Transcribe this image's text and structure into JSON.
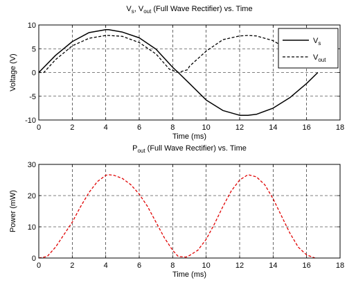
{
  "chart_data": [
    {
      "type": "line",
      "title": "Vs, Vout (Full Wave Rectifier) vs. Time",
      "title_parts": [
        {
          "text": "V",
          "sub": "s"
        },
        {
          "text": ", V",
          "sub": "out"
        },
        {
          "text": " (Full Wave Rectifier) vs. Time",
          "sub": ""
        }
      ],
      "xlabel": "Time (ms)",
      "ylabel": "Voltage (V)",
      "xlim": [
        0,
        18
      ],
      "ylim": [
        -10,
        10
      ],
      "xticks": [
        0,
        2,
        4,
        6,
        8,
        10,
        12,
        14,
        16,
        18
      ],
      "yticks": [
        -10,
        -5,
        0,
        5,
        10
      ],
      "grid": true,
      "legend_position": "top-right",
      "series": [
        {
          "name": "Vs",
          "legend": {
            "text": "V",
            "sub": "s"
          },
          "style": "solid",
          "color": "#000000",
          "x": [
            0,
            1,
            2,
            3,
            4,
            4.17,
            5,
            6,
            7,
            8,
            8.33,
            9,
            10,
            11,
            12,
            12.5,
            13,
            14,
            15,
            16,
            16.67
          ],
          "values": [
            0,
            3.6,
            6.5,
            8.4,
            9.0,
            9.0,
            8.5,
            7.3,
            4.9,
            1.1,
            0,
            -2.3,
            -5.8,
            -8.0,
            -9.0,
            -9.0,
            -8.8,
            -7.5,
            -5.3,
            -2.3,
            0
          ]
        },
        {
          "name": "Vout",
          "legend": {
            "text": "V",
            "sub": "out"
          },
          "style": "dashed",
          "color": "#000000",
          "x": [
            0,
            0.3,
            1,
            2,
            3,
            4,
            4.17,
            5,
            6,
            7,
            7.8,
            8.33,
            8.9,
            9,
            10,
            11,
            12,
            12.5,
            13,
            14,
            15,
            15.6,
            16
          ],
          "values": [
            0,
            0,
            2.7,
            5.6,
            7.2,
            7.8,
            7.8,
            7.6,
            6.3,
            3.9,
            0.7,
            0,
            0.6,
            1.3,
            4.5,
            6.9,
            7.7,
            7.8,
            7.7,
            6.7,
            4.6,
            3.0,
            1.4
          ]
        }
      ]
    },
    {
      "type": "line",
      "title": "Pout (Full Wave Rectifier) vs. Time",
      "title_parts": [
        {
          "text": "P",
          "sub": "out"
        },
        {
          "text": " (Full Wave Rectifier) vs. Time",
          "sub": ""
        }
      ],
      "xlabel": "Time (ms)",
      "ylabel": "Power (mW)",
      "xlim": [
        0,
        18
      ],
      "ylim": [
        0,
        30
      ],
      "xticks": [
        0,
        2,
        4,
        6,
        8,
        10,
        12,
        14,
        16,
        18
      ],
      "yticks": [
        0,
        10,
        20,
        30
      ],
      "grid": true,
      "series": [
        {
          "style": "dashed",
          "color": "#e00000",
          "x": [
            0,
            0.5,
            1,
            1.5,
            2,
            2.5,
            3,
            3.5,
            4,
            4.17,
            4.5,
            5,
            5.5,
            6,
            6.5,
            7,
            7.5,
            8,
            8.33,
            8.8,
            9,
            9.5,
            10,
            10.5,
            11,
            11.5,
            12,
            12.5,
            13,
            13.5,
            14,
            14.5,
            15,
            15.5,
            16,
            16.5
          ],
          "values": [
            0,
            0.5,
            3.5,
            7.5,
            11.5,
            16.5,
            21,
            24.5,
            26.5,
            26.7,
            26.5,
            25.5,
            23.5,
            20.5,
            16.5,
            11.5,
            6.5,
            2.5,
            0.5,
            0.3,
            0.8,
            2.5,
            6,
            11,
            16.5,
            21.5,
            25,
            26.7,
            26,
            23.5,
            19,
            13.5,
            8,
            3.5,
            1,
            0
          ]
        }
      ]
    }
  ]
}
